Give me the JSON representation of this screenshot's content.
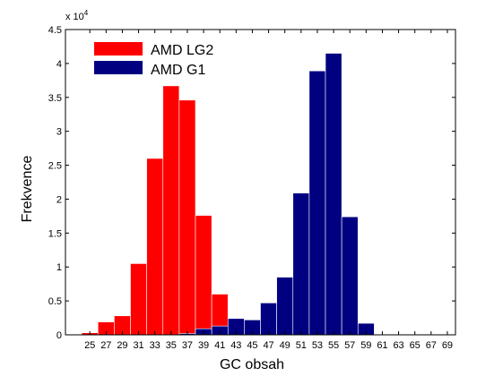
{
  "chart_data": {
    "type": "bar",
    "xlabel": "GC obsah",
    "ylabel": "Frekvence",
    "y_scale_label": "x 10",
    "y_scale_exponent": "4",
    "xlim": [
      22,
      70
    ],
    "ylim": [
      0,
      4.5
    ],
    "bin_width": 2,
    "x_ticks": [
      25,
      27,
      29,
      31,
      33,
      35,
      37,
      39,
      41,
      43,
      45,
      47,
      49,
      51,
      53,
      55,
      57,
      59,
      61,
      63,
      65,
      67,
      69
    ],
    "y_ticks": [
      0,
      0.5,
      1,
      1.5,
      2,
      2.5,
      3,
      3.5,
      4,
      4.5
    ],
    "legend_position": "top-left",
    "series": [
      {
        "name": "AMD LG2",
        "color": "#ff0000",
        "x": [
          25,
          27,
          29,
          31,
          33,
          35,
          37,
          39,
          41,
          43,
          45,
          47
        ],
        "values": [
          0.03,
          0.19,
          0.28,
          1.05,
          2.6,
          3.67,
          3.46,
          1.76,
          0.6,
          0.09,
          0.04,
          0.08
        ]
      },
      {
        "name": "AMD G1",
        "color": "#000080",
        "x": [
          37,
          39,
          41,
          43,
          45,
          47,
          49,
          51,
          53,
          55,
          57,
          59,
          61,
          63,
          65,
          67
        ],
        "values": [
          0.02,
          0.09,
          0.13,
          0.24,
          0.22,
          0.47,
          0.85,
          2.09,
          3.89,
          4.15,
          1.74,
          0.17,
          0.0,
          0.0,
          0.0,
          0.0
        ]
      }
    ]
  }
}
